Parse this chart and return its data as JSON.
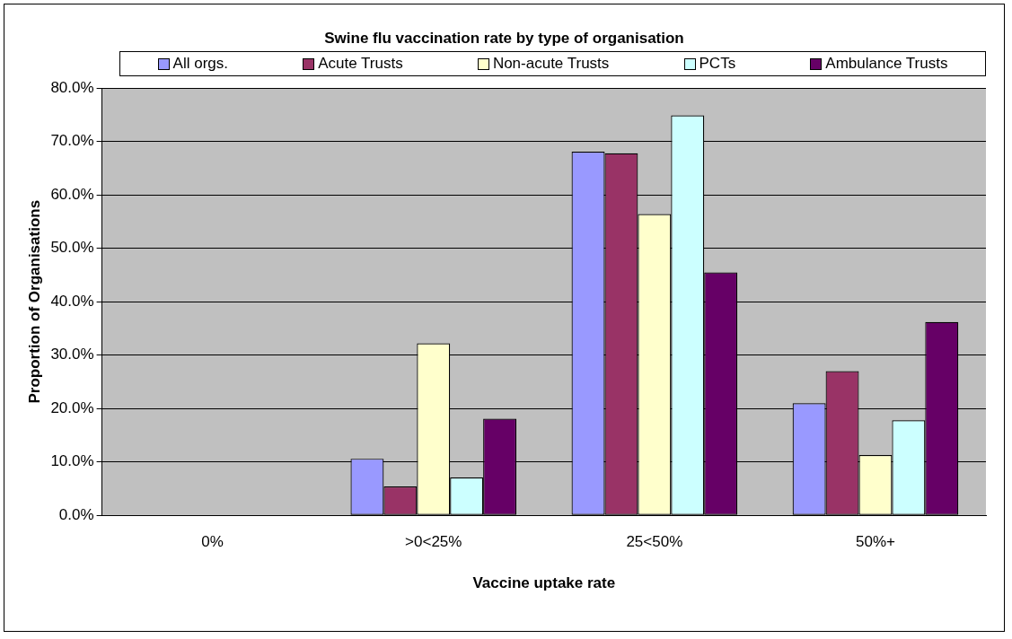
{
  "chart_data": {
    "type": "bar",
    "title": "Swine flu vaccination rate by type of organisation",
    "xlabel": "Vaccine uptake rate",
    "ylabel": "Proportion of Organisations",
    "categories": [
      "0%",
      ">0<25%",
      "25<50%",
      "50%+"
    ],
    "series": [
      {
        "name": "All orgs.",
        "color": "#9999ff",
        "values": [
          0,
          10.6,
          68.1,
          21.0
        ]
      },
      {
        "name": "Acute Trusts",
        "color": "#993366",
        "values": [
          0,
          5.4,
          67.8,
          27.0
        ]
      },
      {
        "name": "Non-acute Trusts",
        "color": "#ffffcc",
        "values": [
          0,
          32.2,
          56.4,
          11.3
        ]
      },
      {
        "name": "PCTs",
        "color": "#ccffff",
        "values": [
          0,
          7.1,
          74.9,
          17.8
        ]
      },
      {
        "name": "Ambulance Trusts",
        "color": "#660066",
        "values": [
          0,
          18.1,
          45.5,
          36.2
        ]
      }
    ],
    "ylim": [
      0,
      80
    ],
    "yticks": [
      {
        "value": 0,
        "label": "0.0%"
      },
      {
        "value": 10,
        "label": "10.0%"
      },
      {
        "value": 20,
        "label": "20.0%"
      },
      {
        "value": 30,
        "label": "30.0%"
      },
      {
        "value": 40,
        "label": "40.0%"
      },
      {
        "value": 50,
        "label": "50.0%"
      },
      {
        "value": 60,
        "label": "60.0%"
      },
      {
        "value": 70,
        "label": "70.0%"
      },
      {
        "value": 80,
        "label": "80.0%"
      }
    ],
    "grid": "y",
    "legend": "top"
  }
}
